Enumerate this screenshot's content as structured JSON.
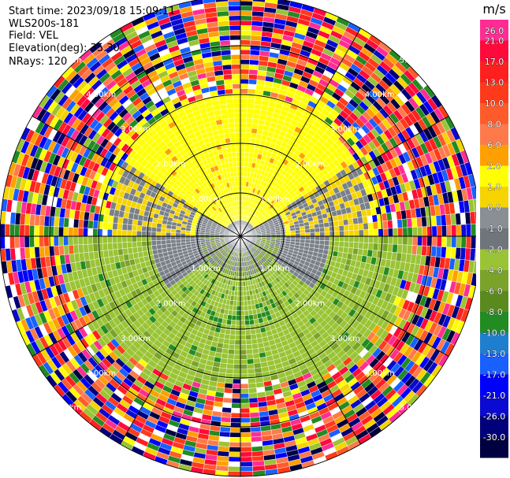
{
  "header": {
    "start_time": "Start time: 2023/09/18 15:09:11",
    "instrument": "WLS200s-181",
    "field": "Field: VEL",
    "elevation": "Elevation(deg): 35.30",
    "nrays": "NRays: 120"
  },
  "range_rings": {
    "labels": [
      "1.00km",
      "2.00km",
      "3.00km",
      "4.00km",
      "5.00km"
    ]
  },
  "colorbar": {
    "unit": "m/s",
    "ticks": [
      "26.0",
      "21.0",
      "17.0",
      "13.0",
      "10.0",
      "8.0",
      "6.0",
      "2.0",
      "1.0",
      "0.0",
      "-1.0",
      "-2.0",
      "-4.0",
      "-6.0",
      "-8.0",
      "-10.0",
      "-13.0",
      "-17.0",
      "-21.0",
      "-26.0",
      "-30.0"
    ],
    "colors": [
      "#ff2d93",
      "#ff0a3a",
      "#ff1f1f",
      "#ff3a1a",
      "#ff5a2a",
      "#ff7a4a",
      "#ffa000",
      "#ffff00",
      "#f5d400",
      "#8a8f94",
      "#6f757a",
      "#9ac435",
      "#7aa32a",
      "#5a8a1e",
      "#228b22",
      "#1e7fd0",
      "#1860ff",
      "#0000ff",
      "#0a0ad0",
      "#00007a",
      "#000040"
    ]
  },
  "scan_colors": {
    "positive_near": "#ffff00",
    "gray_zero": "#7a8088",
    "green_neg": "#9ac435",
    "dark_green": "#228b22"
  }
}
